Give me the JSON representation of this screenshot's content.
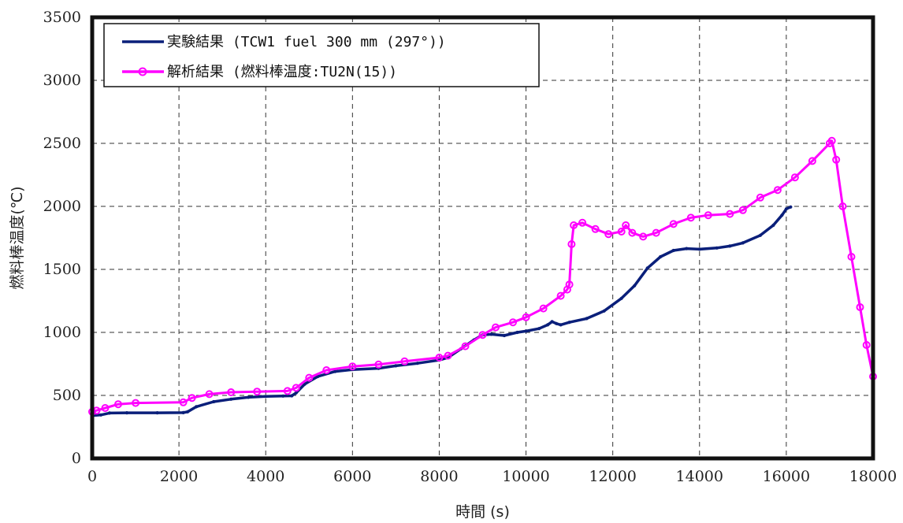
{
  "chart_data": {
    "type": "line",
    "xlabel": "時間 (s)",
    "ylabel": "燃料棒温度(℃)",
    "xlim": [
      0,
      18000
    ],
    "ylim": [
      0,
      3500
    ],
    "xticks": [
      0,
      2000,
      4000,
      6000,
      8000,
      10000,
      12000,
      14000,
      16000,
      18000
    ],
    "yticks": [
      0,
      500,
      1000,
      1500,
      2000,
      2500,
      3000,
      3500
    ],
    "grid": true,
    "legend_position": "top-left",
    "series": [
      {
        "name": "実験結果 (TCW1 fuel 300 mm (297°))",
        "color": "#0a1f7a",
        "marker": "none",
        "points": [
          [
            0,
            340
          ],
          [
            200,
            345
          ],
          [
            400,
            360
          ],
          [
            800,
            362
          ],
          [
            1500,
            362
          ],
          [
            2100,
            363
          ],
          [
            2200,
            370
          ],
          [
            2400,
            410
          ],
          [
            2800,
            450
          ],
          [
            3200,
            470
          ],
          [
            3600,
            485
          ],
          [
            4000,
            492
          ],
          [
            4400,
            495
          ],
          [
            4600,
            497
          ],
          [
            4700,
            520
          ],
          [
            4900,
            590
          ],
          [
            5200,
            650
          ],
          [
            5600,
            690
          ],
          [
            6000,
            705
          ],
          [
            6600,
            715
          ],
          [
            7000,
            735
          ],
          [
            7500,
            755
          ],
          [
            8000,
            780
          ],
          [
            8200,
            800
          ],
          [
            8500,
            870
          ],
          [
            8800,
            940
          ],
          [
            9000,
            980
          ],
          [
            9200,
            985
          ],
          [
            9500,
            975
          ],
          [
            9800,
            1000
          ],
          [
            10000,
            1010
          ],
          [
            10300,
            1030
          ],
          [
            10500,
            1060
          ],
          [
            10600,
            1085
          ],
          [
            10700,
            1070
          ],
          [
            10800,
            1060
          ],
          [
            11000,
            1080
          ],
          [
            11400,
            1110
          ],
          [
            11800,
            1170
          ],
          [
            12200,
            1270
          ],
          [
            12500,
            1370
          ],
          [
            12800,
            1510
          ],
          [
            13100,
            1600
          ],
          [
            13400,
            1650
          ],
          [
            13700,
            1665
          ],
          [
            14000,
            1660
          ],
          [
            14400,
            1670
          ],
          [
            14700,
            1685
          ],
          [
            15000,
            1710
          ],
          [
            15400,
            1770
          ],
          [
            15700,
            1850
          ],
          [
            15900,
            1930
          ],
          [
            16000,
            1980
          ],
          [
            16100,
            1995
          ]
        ]
      },
      {
        "name": "解析結果 (燃料棒温度:TU2N(15))",
        "color": "#ff00ff",
        "marker": "circle",
        "points": [
          [
            0,
            370
          ],
          [
            100,
            380
          ],
          [
            300,
            400
          ],
          [
            600,
            430
          ],
          [
            1000,
            440
          ],
          [
            2100,
            445
          ],
          [
            2300,
            480
          ],
          [
            2700,
            510
          ],
          [
            3200,
            525
          ],
          [
            3800,
            530
          ],
          [
            4500,
            535
          ],
          [
            4700,
            560
          ],
          [
            5000,
            640
          ],
          [
            5400,
            700
          ],
          [
            6000,
            730
          ],
          [
            6600,
            745
          ],
          [
            7200,
            770
          ],
          [
            8000,
            800
          ],
          [
            8200,
            815
          ],
          [
            8600,
            890
          ],
          [
            9000,
            980
          ],
          [
            9300,
            1040
          ],
          [
            9700,
            1080
          ],
          [
            10000,
            1120
          ],
          [
            10400,
            1190
          ],
          [
            10800,
            1290
          ],
          [
            10950,
            1340
          ],
          [
            11000,
            1380
          ],
          [
            11050,
            1700
          ],
          [
            11100,
            1850
          ],
          [
            11300,
            1870
          ],
          [
            11600,
            1820
          ],
          [
            11900,
            1780
          ],
          [
            12200,
            1800
          ],
          [
            12300,
            1850
          ],
          [
            12450,
            1790
          ],
          [
            12700,
            1760
          ],
          [
            13000,
            1790
          ],
          [
            13400,
            1860
          ],
          [
            13800,
            1910
          ],
          [
            14200,
            1930
          ],
          [
            14700,
            1940
          ],
          [
            15000,
            1970
          ],
          [
            15400,
            2070
          ],
          [
            15800,
            2130
          ],
          [
            16200,
            2230
          ],
          [
            16600,
            2360
          ],
          [
            17000,
            2500
          ],
          [
            17050,
            2520
          ],
          [
            17150,
            2370
          ],
          [
            17300,
            2000
          ],
          [
            17500,
            1600
          ],
          [
            17700,
            1200
          ],
          [
            17850,
            900
          ],
          [
            18000,
            650
          ]
        ]
      }
    ]
  }
}
